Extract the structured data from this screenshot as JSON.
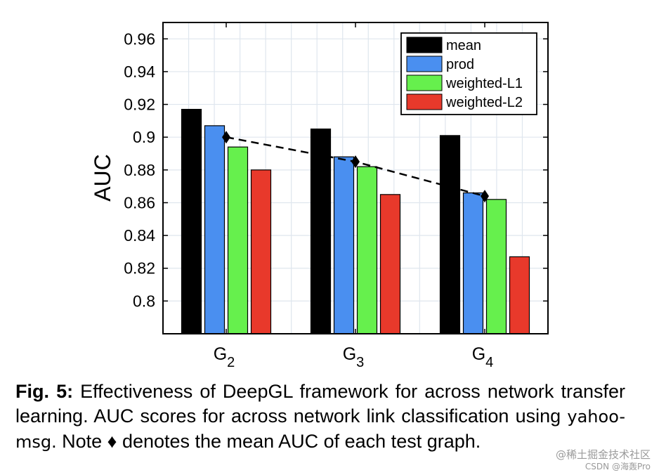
{
  "chart_data": {
    "type": "bar",
    "ylabel": "AUC",
    "ylim": [
      0.78,
      0.97
    ],
    "yticks": [
      0.8,
      0.82,
      0.84,
      0.86,
      0.88,
      0.9,
      0.92,
      0.94,
      0.96
    ],
    "ytick_labels": [
      "0.8",
      "0.82",
      "0.84",
      "0.86",
      "0.88",
      "0.9",
      "0.92",
      "0.94",
      "0.96"
    ],
    "grid": true,
    "legend_position": "top-right",
    "categories": [
      {
        "base": "G",
        "sub": "2"
      },
      {
        "base": "G",
        "sub": "3"
      },
      {
        "base": "G",
        "sub": "4"
      }
    ],
    "series": [
      {
        "name": "mean",
        "color": "#000000",
        "values": [
          0.917,
          0.905,
          0.901
        ]
      },
      {
        "name": "prod",
        "color": "#4a8ff0",
        "values": [
          0.907,
          0.888,
          0.866
        ]
      },
      {
        "name": "weighted-L1",
        "color": "#66f04d",
        "values": [
          0.894,
          0.882,
          0.862
        ]
      },
      {
        "name": "weighted-L2",
        "color": "#e8392b",
        "values": [
          0.88,
          0.865,
          0.827
        ]
      }
    ],
    "mean_markers": [
      0.9,
      0.885,
      0.864
    ]
  },
  "caption": {
    "label": "Fig. 5:",
    "text_before": "Effectiveness of DeepGL framework for across network transfer learning. AUC scores for across network link classification using",
    "dataset": "yahoo-msg",
    "text_after": ". Note ♦ denotes the mean AUC of each test graph."
  },
  "watermark": {
    "line1": "@稀土掘金技术社区",
    "line2": "CSDN @海轰Pro"
  }
}
